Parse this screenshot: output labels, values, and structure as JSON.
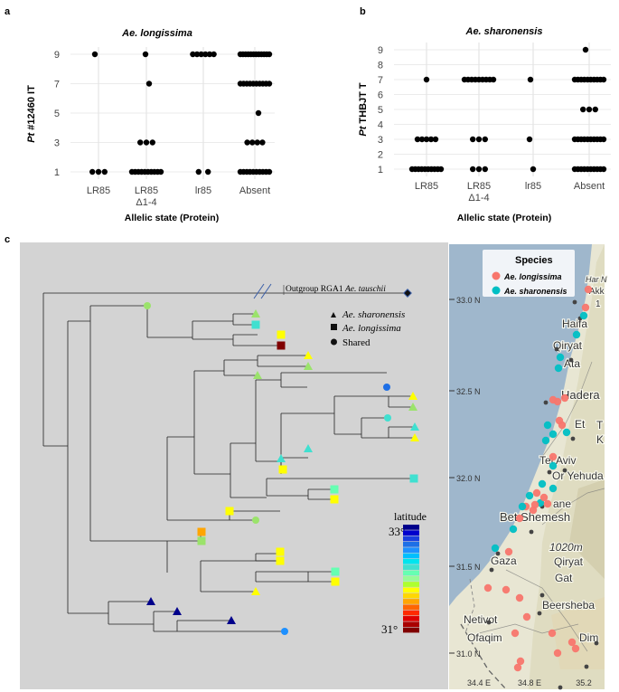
{
  "panels": {
    "a": {
      "letter": "a",
      "title": "Ae. longissima",
      "ylabel_italic": "Pt",
      "ylabel_rest": " #12460 IT"
    },
    "b": {
      "letter": "b",
      "title": "Ae. sharonensis",
      "ylabel_italic": "Pt",
      "ylabel_rest": " THBJT T"
    },
    "c": {
      "letter": "c"
    }
  },
  "chart_data": [
    {
      "id": "a",
      "type": "scatter",
      "title": "Ae. longissima",
      "xlabel": "Allelic state (Protein)",
      "ylabel": "Pt #12460 IT",
      "categories": [
        "LR85",
        "LR85 Δ1-4",
        "lr85",
        "Absent"
      ],
      "yticks": [
        1,
        3,
        5,
        7,
        9
      ],
      "ylim": [
        1,
        9
      ],
      "points": [
        {
          "cat": "LR85",
          "y": [
            1,
            1,
            1,
            9
          ]
        },
        {
          "cat": "LR85 Δ1-4",
          "y": [
            1,
            1,
            1,
            1,
            1,
            1,
            1,
            1,
            1,
            1,
            3,
            3,
            3,
            7,
            9
          ]
        },
        {
          "cat": "lr85",
          "y": [
            1,
            1,
            9,
            9,
            9,
            9,
            9,
            9
          ]
        },
        {
          "cat": "Absent",
          "y": [
            1,
            1,
            1,
            1,
            1,
            1,
            1,
            1,
            1,
            1,
            3,
            3,
            3,
            3,
            5,
            7,
            7,
            7,
            7,
            7,
            7,
            7,
            7,
            7,
            7,
            9,
            9,
            9,
            9,
            9,
            9,
            9,
            9,
            9,
            9,
            9,
            9
          ]
        }
      ]
    },
    {
      "id": "b",
      "type": "scatter",
      "title": "Ae. sharonensis",
      "xlabel": "Allelic state (Protein)",
      "ylabel": "Pt THBJT T",
      "categories": [
        "LR85",
        "LR85 Δ1-4",
        "lr85",
        "Absent"
      ],
      "yticks": [
        1,
        2,
        3,
        4,
        5,
        6,
        7,
        8,
        9
      ],
      "ylim": [
        1,
        9
      ],
      "points": [
        {
          "cat": "LR85",
          "y": [
            1,
            1,
            1,
            1,
            1,
            1,
            1,
            1,
            1,
            1,
            3,
            3,
            3,
            3,
            3,
            7
          ]
        },
        {
          "cat": "LR85 Δ1-4",
          "y": [
            1,
            1,
            1,
            3,
            3,
            3,
            7,
            7,
            7,
            7,
            7,
            7,
            7,
            7,
            7
          ]
        },
        {
          "cat": "lr85",
          "y": [
            1,
            3,
            7
          ]
        },
        {
          "cat": "Absent",
          "y": [
            1,
            1,
            1,
            1,
            1,
            1,
            1,
            1,
            1,
            1,
            3,
            3,
            3,
            3,
            3,
            3,
            3,
            3,
            3,
            3,
            5,
            5,
            5,
            7,
            7,
            7,
            7,
            7,
            7,
            7,
            7,
            7,
            7,
            9
          ]
        }
      ]
    }
  ],
  "tree": {
    "outgroup_label": "Outgroup RGA1 ",
    "outgroup_species": "Ae. tauschii",
    "legend": [
      {
        "symbol": "triangle",
        "label": "Ae. sharonensis",
        "italic": true
      },
      {
        "symbol": "square",
        "label": "Ae. longissima",
        "italic": true
      },
      {
        "symbol": "circle",
        "label": "Shared",
        "italic": false
      }
    ],
    "latitude_title": "latitude",
    "latitude_max": "33°",
    "latitude_min": "31°",
    "latitude_colors": [
      "#00008b",
      "#0000cd",
      "#1a3fe0",
      "#1e6fe6",
      "#1e90ff",
      "#00bfff",
      "#00e5ee",
      "#40e0d0",
      "#66ffb2",
      "#98fb98",
      "#adff2f",
      "#ffff00",
      "#ffd700",
      "#ffa500",
      "#ff6600",
      "#ff2a00",
      "#dd0000",
      "#aa0000",
      "#800000"
    ]
  },
  "map": {
    "legend_title": "Species",
    "species": [
      {
        "label": "Ae. longissima",
        "color": "#f8766d"
      },
      {
        "label": "Ae. sharonensis",
        "color": "#00bfc4"
      }
    ],
    "lat_labels": [
      "33.0 N",
      "32.5 N",
      "32.0 N",
      "31.5 N",
      "31.0 N"
    ],
    "lon_labels": [
      "34.4 E",
      "34.8 E",
      "35.2"
    ],
    "places": [
      "Har N",
      "'Akk",
      "1",
      "Haifa",
      "Qiryat",
      "Ata",
      "Hadera",
      "Et",
      "T",
      "K",
      "Tel Aviv",
      "Or Yehuda",
      "ane",
      "Bet Shemesh",
      "1020m",
      "Gaza",
      "Qiryat",
      "Gat",
      "Netivot",
      "Ofaqim",
      "Beersheba",
      "Dim"
    ]
  }
}
